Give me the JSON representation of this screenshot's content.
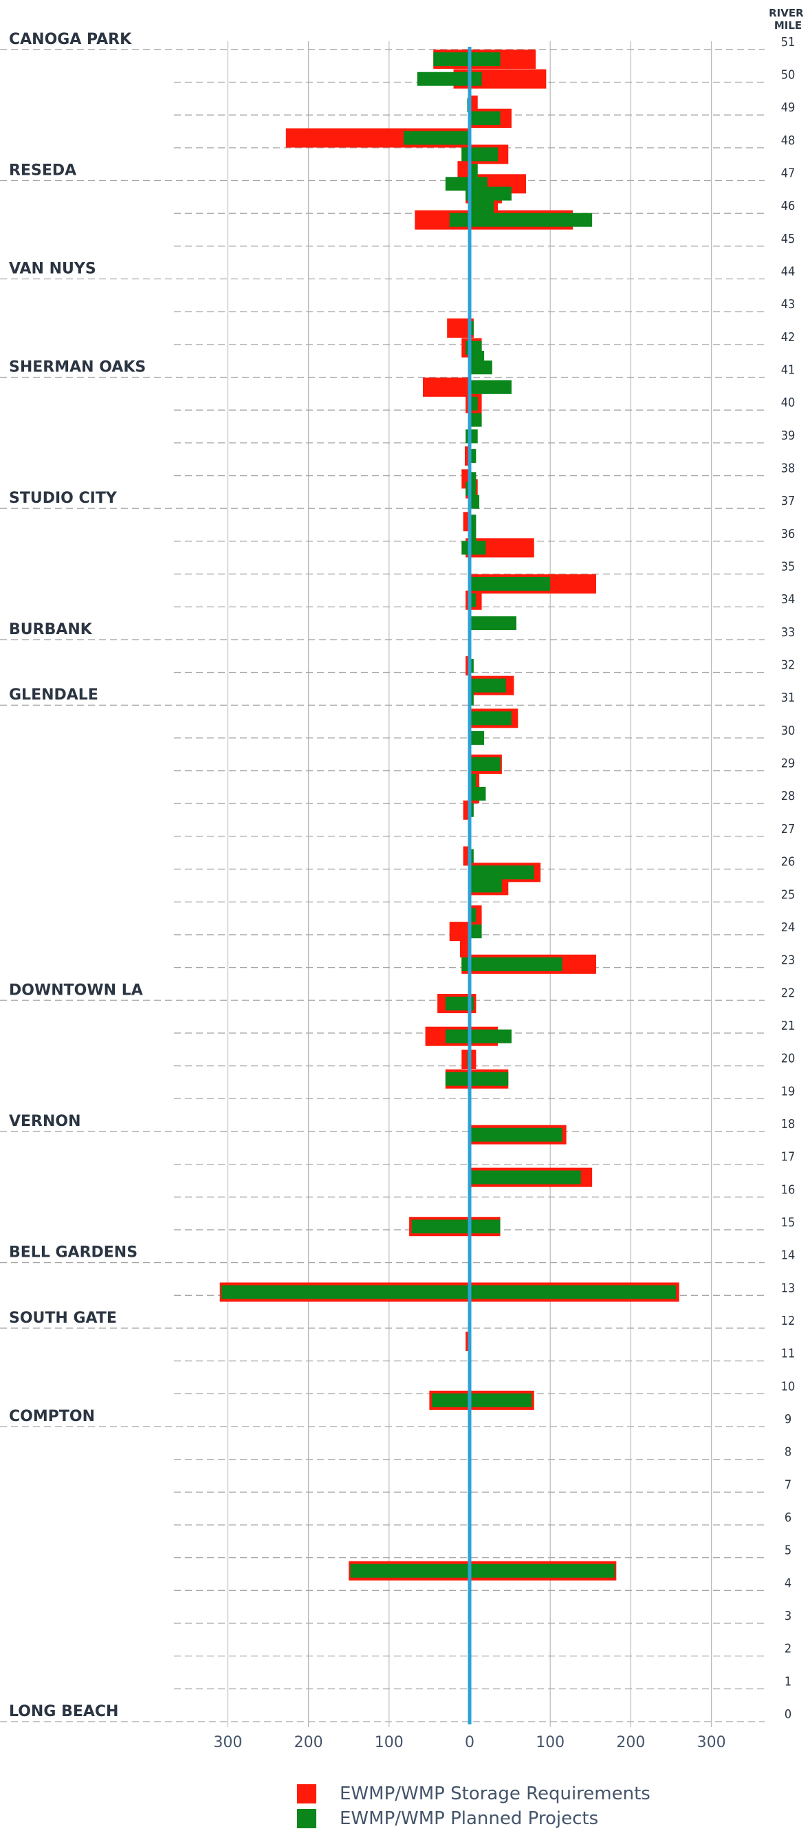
{
  "chart_data": {
    "type": "bar",
    "orientation": "horizontal",
    "header": "RIVER\nMILE",
    "x_ticks": [
      -300,
      -200,
      -100,
      0,
      100,
      200,
      300
    ],
    "x_tick_labels": [
      "300",
      "200",
      "100",
      "0",
      "100",
      "200",
      "300"
    ],
    "xlim": [
      -355,
      355
    ],
    "river_miles": [
      51,
      50,
      49,
      48,
      47,
      46,
      45,
      44,
      43,
      42,
      41,
      40,
      39,
      38,
      37,
      36,
      35,
      34,
      33,
      32,
      31,
      30,
      29,
      28,
      27,
      26,
      25,
      24,
      23,
      22,
      21,
      20,
      19,
      18,
      17,
      16,
      15,
      14,
      13,
      12,
      11,
      10,
      9,
      8,
      7,
      6,
      5,
      4,
      3,
      2,
      1,
      0
    ],
    "cities": [
      {
        "name": "CANOGA PARK",
        "mile": 51
      },
      {
        "name": "RESEDA",
        "mile": 47
      },
      {
        "name": "VAN NUYS",
        "mile": 44
      },
      {
        "name": "SHERMAN OAKS",
        "mile": 41
      },
      {
        "name": "STUDIO CITY",
        "mile": 37
      },
      {
        "name": "BURBANK",
        "mile": 33
      },
      {
        "name": "GLENDALE",
        "mile": 31
      },
      {
        "name": "DOWNTOWN LA",
        "mile": 22
      },
      {
        "name": "VERNON",
        "mile": 18
      },
      {
        "name": "BELL GARDENS",
        "mile": 14
      },
      {
        "name": "SOUTH GATE",
        "mile": 12
      },
      {
        "name": "COMPTON",
        "mile": 9
      },
      {
        "name": "LONG BEACH",
        "mile": 0
      }
    ],
    "series": [
      {
        "name": "EWMP/WMP Storage Requirements",
        "color": "#ff1a0a",
        "bars": [
          {
            "mile": 50.7,
            "left": -45,
            "right": 82
          },
          {
            "mile": 50.1,
            "left": -20,
            "right": 95
          },
          {
            "mile": 49.3,
            "left": 0,
            "right": 10
          },
          {
            "mile": 48.9,
            "left": 0,
            "right": 52
          },
          {
            "mile": 48.3,
            "left": -228,
            "right": 0
          },
          {
            "mile": 47.8,
            "left": -10,
            "right": 48
          },
          {
            "mile": 47.3,
            "left": -15,
            "right": 0
          },
          {
            "mile": 46.9,
            "left": 0,
            "right": 70
          },
          {
            "mile": 46.6,
            "left": -5,
            "right": 40
          },
          {
            "mile": 46.2,
            "left": 0,
            "right": 35
          },
          {
            "mile": 45.8,
            "left": -68,
            "right": 128
          },
          {
            "mile": 42.5,
            "left": -28,
            "right": 5
          },
          {
            "mile": 41.9,
            "left": -10,
            "right": 15
          },
          {
            "mile": 40.7,
            "left": -58,
            "right": 0
          },
          {
            "mile": 40.2,
            "left": -5,
            "right": 15
          },
          {
            "mile": 38.6,
            "left": -6,
            "right": 0
          },
          {
            "mile": 37.9,
            "left": -10,
            "right": 0
          },
          {
            "mile": 37.6,
            "left": -5,
            "right": 10
          },
          {
            "mile": 36.6,
            "left": -8,
            "right": 0
          },
          {
            "mile": 35.8,
            "left": -5,
            "right": 80
          },
          {
            "mile": 34.7,
            "left": 0,
            "right": 157
          },
          {
            "mile": 34.2,
            "left": -5,
            "right": 15
          },
          {
            "mile": 32.2,
            "left": -5,
            "right": 0
          },
          {
            "mile": 31.6,
            "left": 0,
            "right": 55
          },
          {
            "mile": 30.6,
            "left": 0,
            "right": 60
          },
          {
            "mile": 29.2,
            "left": 0,
            "right": 40
          },
          {
            "mile": 28.7,
            "left": 0,
            "right": 12
          },
          {
            "mile": 28.3,
            "left": 0,
            "right": 12
          },
          {
            "mile": 27.8,
            "left": -8,
            "right": 0
          },
          {
            "mile": 26.4,
            "left": -8,
            "right": 0
          },
          {
            "mile": 25.9,
            "left": 0,
            "right": 88
          },
          {
            "mile": 25.5,
            "left": 0,
            "right": 48
          },
          {
            "mile": 24.6,
            "left": 0,
            "right": 15
          },
          {
            "mile": 24.1,
            "left": -25,
            "right": 0
          },
          {
            "mile": 23.6,
            "left": -12,
            "right": 0
          },
          {
            "mile": 23.1,
            "left": -10,
            "right": 157
          },
          {
            "mile": 21.9,
            "left": -40,
            "right": 8
          },
          {
            "mile": 20.9,
            "left": -55,
            "right": 35
          },
          {
            "mile": 20.2,
            "left": -10,
            "right": 8
          },
          {
            "mile": 19.6,
            "left": -30,
            "right": 48
          },
          {
            "mile": 17.9,
            "left": 0,
            "right": 120
          },
          {
            "mile": 16.6,
            "left": 0,
            "right": 152
          },
          {
            "mile": 15.1,
            "left": -75,
            "right": 38
          },
          {
            "mile": 13.1,
            "left": -310,
            "right": 260
          },
          {
            "mile": 11.6,
            "left": -5,
            "right": 0
          },
          {
            "mile": 9.8,
            "left": -50,
            "right": 80
          },
          {
            "mile": 4.6,
            "left": -150,
            "right": 182
          }
        ]
      },
      {
        "name": "EWMP/WMP Planned Projects",
        "color": "#0a861a",
        "bars": [
          {
            "mile": 50.7,
            "left": -45,
            "right": 38
          },
          {
            "mile": 50.1,
            "left": -65,
            "right": 15
          },
          {
            "mile": 49.3,
            "left": -3,
            "right": 0
          },
          {
            "mile": 48.9,
            "left": 0,
            "right": 38
          },
          {
            "mile": 48.3,
            "left": -82,
            "right": 0
          },
          {
            "mile": 47.8,
            "left": -10,
            "right": 35
          },
          {
            "mile": 47.3,
            "left": 0,
            "right": 10
          },
          {
            "mile": 46.9,
            "left": -30,
            "right": 22
          },
          {
            "mile": 46.6,
            "left": -5,
            "right": 52
          },
          {
            "mile": 46.2,
            "left": 0,
            "right": 30
          },
          {
            "mile": 45.8,
            "left": -25,
            "right": 152
          },
          {
            "mile": 42.5,
            "left": 0,
            "right": 5
          },
          {
            "mile": 41.9,
            "left": -5,
            "right": 15
          },
          {
            "mile": 41.6,
            "left": 0,
            "right": 18
          },
          {
            "mile": 41.3,
            "left": 0,
            "right": 28
          },
          {
            "mile": 40.7,
            "left": 0,
            "right": 52
          },
          {
            "mile": 40.2,
            "left": 0,
            "right": 10
          },
          {
            "mile": 39.7,
            "left": 0,
            "right": 15
          },
          {
            "mile": 39.2,
            "left": -5,
            "right": 10
          },
          {
            "mile": 38.6,
            "left": 0,
            "right": 8
          },
          {
            "mile": 37.9,
            "left": 0,
            "right": 8
          },
          {
            "mile": 37.6,
            "left": -5,
            "right": 8
          },
          {
            "mile": 37.2,
            "left": 0,
            "right": 12
          },
          {
            "mile": 36.6,
            "left": 0,
            "right": 8
          },
          {
            "mile": 36.2,
            "left": 0,
            "right": 8
          },
          {
            "mile": 35.8,
            "left": -10,
            "right": 20
          },
          {
            "mile": 34.7,
            "left": 0,
            "right": 100
          },
          {
            "mile": 34.2,
            "left": 0,
            "right": 8
          },
          {
            "mile": 33.5,
            "left": 0,
            "right": 58
          },
          {
            "mile": 32.2,
            "left": 0,
            "right": 5
          },
          {
            "mile": 31.6,
            "left": 0,
            "right": 45
          },
          {
            "mile": 31.2,
            "left": 0,
            "right": 5
          },
          {
            "mile": 30.6,
            "left": 0,
            "right": 52
          },
          {
            "mile": 30.0,
            "left": 0,
            "right": 18
          },
          {
            "mile": 29.2,
            "left": 0,
            "right": 38
          },
          {
            "mile": 28.7,
            "left": 0,
            "right": 8
          },
          {
            "mile": 28.3,
            "left": 0,
            "right": 20
          },
          {
            "mile": 27.8,
            "left": 0,
            "right": 5
          },
          {
            "mile": 26.4,
            "left": 0,
            "right": 5
          },
          {
            "mile": 25.9,
            "left": 0,
            "right": 80
          },
          {
            "mile": 25.5,
            "left": 0,
            "right": 40
          },
          {
            "mile": 24.6,
            "left": 0,
            "right": 8
          },
          {
            "mile": 24.1,
            "left": 0,
            "right": 15
          },
          {
            "mile": 23.1,
            "left": -10,
            "right": 115
          },
          {
            "mile": 21.9,
            "left": -30,
            "right": 5
          },
          {
            "mile": 20.9,
            "left": -30,
            "right": 52
          },
          {
            "mile": 20.2,
            "left": -3,
            "right": 0
          },
          {
            "mile": 19.6,
            "left": -30,
            "right": 48
          },
          {
            "mile": 17.9,
            "left": 0,
            "right": 115
          },
          {
            "mile": 16.6,
            "left": 0,
            "right": 138
          },
          {
            "mile": 15.1,
            "left": -72,
            "right": 38
          },
          {
            "mile": 13.1,
            "left": -308,
            "right": 256
          },
          {
            "mile": 9.8,
            "left": -47,
            "right": 77
          },
          {
            "mile": 4.6,
            "left": -148,
            "right": 180
          }
        ]
      }
    ]
  },
  "legend": [
    {
      "label": "EWMP/WMP Storage Requirements",
      "color": "#ff1a0a"
    },
    {
      "label": "EWMP/WMP Planned Projects",
      "color": "#0a861a"
    }
  ],
  "colors": {
    "axis": "#2aa3d6",
    "grid": "#b9b9b9",
    "dashed": "#a7a7a7"
  }
}
